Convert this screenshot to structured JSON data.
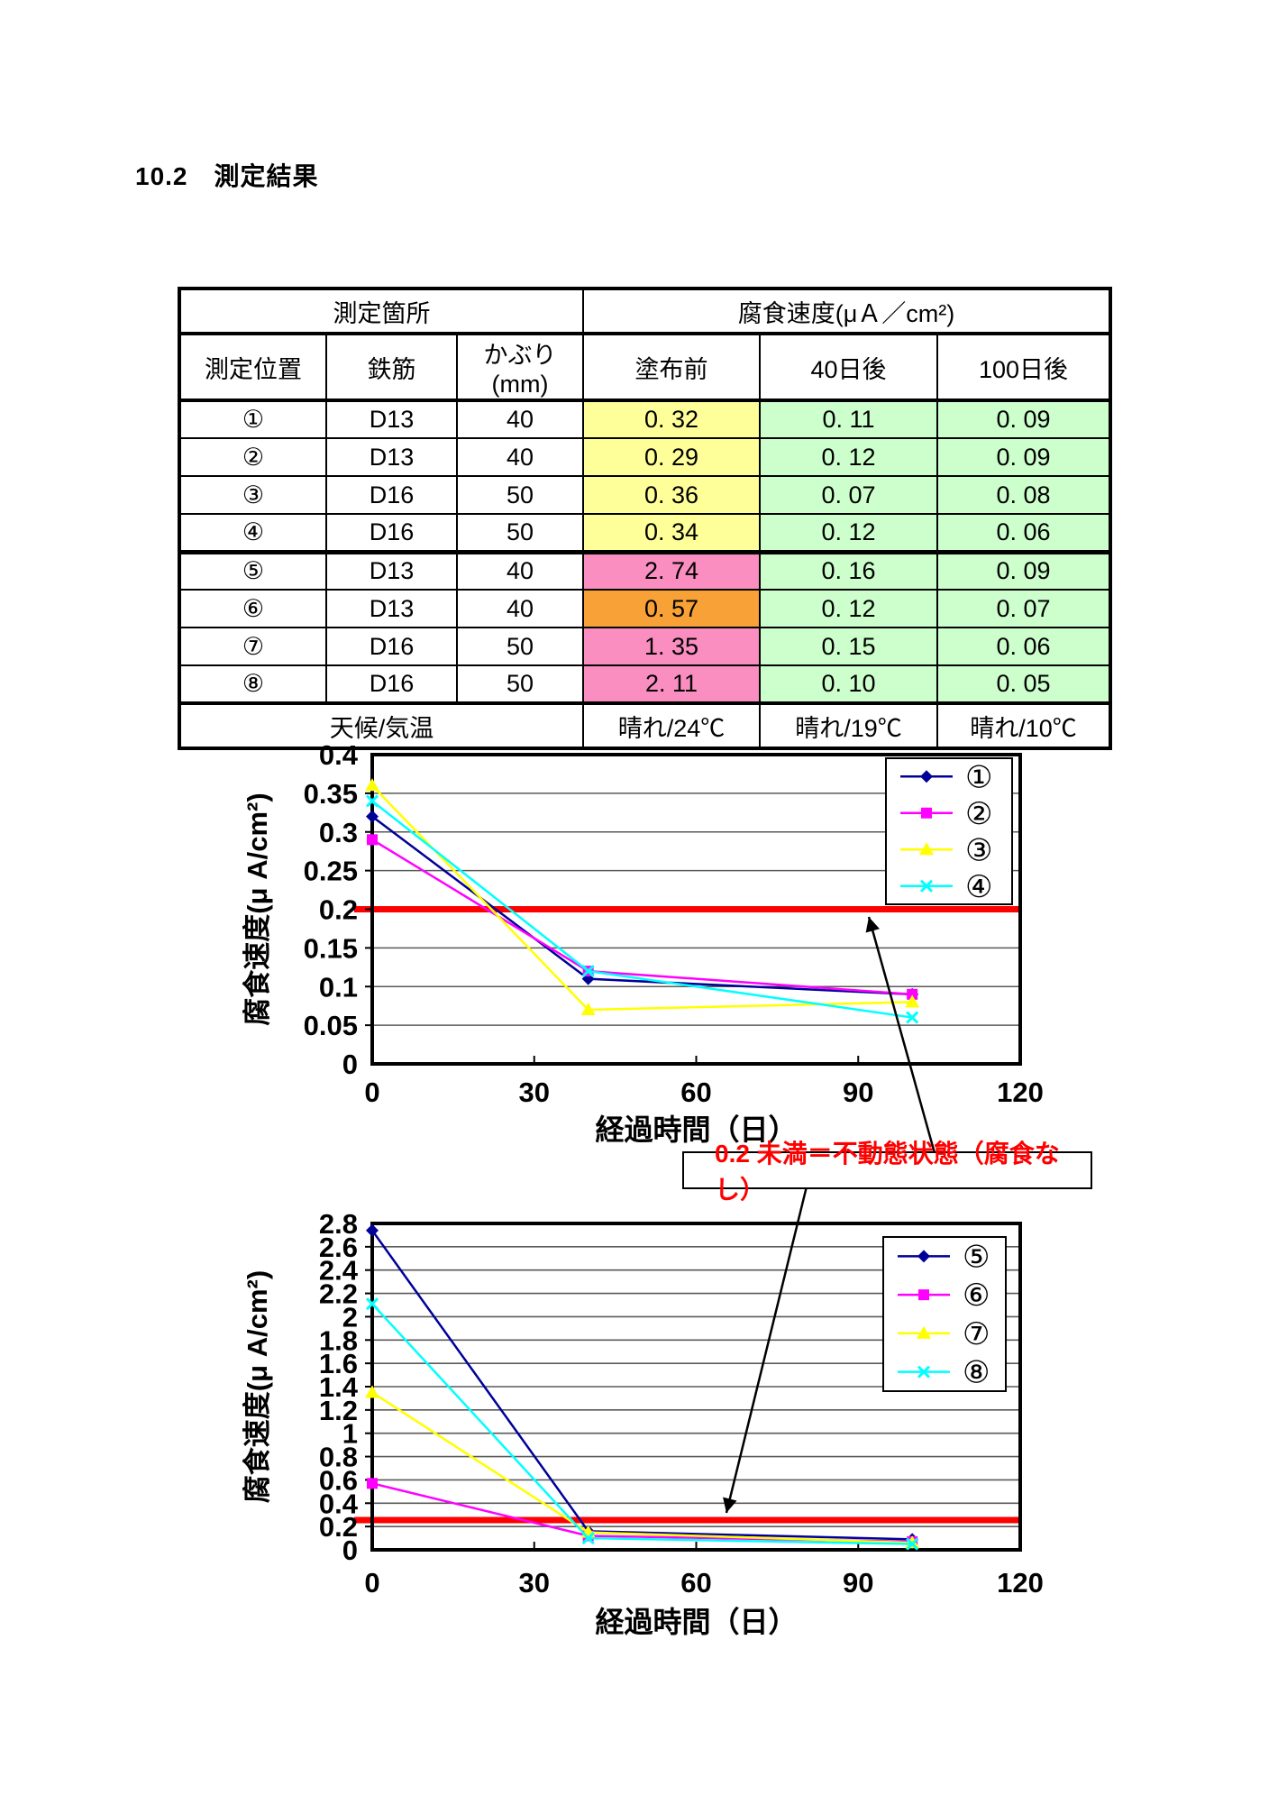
{
  "page": {
    "title": "10.2　測定結果"
  },
  "table": {
    "group_headers": {
      "left": "測定箇所",
      "right": "腐食速度(μＡ／cm²)"
    },
    "columns": [
      "測定位置",
      "鉄筋",
      "かぶり(mm)",
      "塗布前",
      "40日後",
      "100日後"
    ],
    "rows": [
      {
        "pos": "①",
        "bar": "D13",
        "cover": "40",
        "before": "0. 32",
        "after40": "0. 11",
        "after100": "0. 09",
        "before_color": "#FFFF99"
      },
      {
        "pos": "②",
        "bar": "D13",
        "cover": "40",
        "before": "0. 29",
        "after40": "0. 12",
        "after100": "0. 09",
        "before_color": "#FFFF99"
      },
      {
        "pos": "③",
        "bar": "D16",
        "cover": "50",
        "before": "0. 36",
        "after40": "0. 07",
        "after100": "0. 08",
        "before_color": "#FFFF99"
      },
      {
        "pos": "④",
        "bar": "D16",
        "cover": "50",
        "before": "0. 34",
        "after40": "0. 12",
        "after100": "0. 06",
        "before_color": "#FFFF99"
      },
      {
        "pos": "⑤",
        "bar": "D13",
        "cover": "40",
        "before": "2. 74",
        "after40": "0. 16",
        "after100": "0. 09",
        "before_color": "#FA8EC0"
      },
      {
        "pos": "⑥",
        "bar": "D13",
        "cover": "40",
        "before": "0. 57",
        "after40": "0. 12",
        "after100": "0. 07",
        "before_color": "#F7A136"
      },
      {
        "pos": "⑦",
        "bar": "D16",
        "cover": "50",
        "before": "1. 35",
        "after40": "0. 15",
        "after100": "0. 06",
        "before_color": "#FA8EC0"
      },
      {
        "pos": "⑧",
        "bar": "D16",
        "cover": "50",
        "before": "2. 11",
        "after40": "0. 10",
        "after100": "0. 05",
        "before_color": "#FA8EC0"
      }
    ],
    "result_color": "#CCFFCC",
    "footer": {
      "label": "天候/気温",
      "values": [
        "晴れ/24℃",
        "晴れ/19℃",
        "晴れ/10℃"
      ]
    }
  },
  "annotation": {
    "text": "0.2 未満＝不動態状態（腐食なし）",
    "text_color": "#FF0000"
  },
  "chart_data": [
    {
      "type": "line",
      "title": "",
      "x": [
        0,
        40,
        100
      ],
      "series": [
        {
          "name": "①",
          "color": "#000099",
          "marker": "diamond",
          "values": [
            0.32,
            0.11,
            0.09
          ]
        },
        {
          "name": "②",
          "color": "#FF00FF",
          "marker": "square",
          "values": [
            0.29,
            0.12,
            0.09
          ]
        },
        {
          "name": "③",
          "color": "#FFFF00",
          "marker": "triangle",
          "values": [
            0.36,
            0.07,
            0.08
          ]
        },
        {
          "name": "④",
          "color": "#00FFFF",
          "marker": "x",
          "values": [
            0.34,
            0.12,
            0.06
          ]
        }
      ],
      "xlabel": "経過時間（日）",
      "ylabel": "腐食速度(μ A/cm²)",
      "xlim": [
        0,
        120
      ],
      "xticks": [
        0,
        30,
        60,
        90,
        120
      ],
      "ylim": [
        0,
        0.4
      ],
      "ytick_step": 0.05,
      "threshold": 0.2,
      "threshold_color": "#FF0000",
      "grid": "horizontal-only",
      "legend_position": "inside-top-right"
    },
    {
      "type": "line",
      "title": "",
      "x": [
        0,
        40,
        100
      ],
      "series": [
        {
          "name": "⑤",
          "color": "#000099",
          "marker": "diamond",
          "values": [
            2.74,
            0.16,
            0.09
          ]
        },
        {
          "name": "⑥",
          "color": "#FF00FF",
          "marker": "square",
          "values": [
            0.57,
            0.12,
            0.07
          ]
        },
        {
          "name": "⑦",
          "color": "#FFFF00",
          "marker": "triangle",
          "values": [
            1.35,
            0.15,
            0.06
          ]
        },
        {
          "name": "⑧",
          "color": "#00FFFF",
          "marker": "x",
          "values": [
            2.11,
            0.1,
            0.05
          ]
        }
      ],
      "xlabel": "経過時間（日）",
      "ylabel": "腐食速度(μ A/cm²)",
      "xlim": [
        0,
        120
      ],
      "xticks": [
        0,
        30,
        60,
        90,
        120
      ],
      "ylim": [
        0,
        2.8
      ],
      "ytick_step": 0.2,
      "threshold": 0.2,
      "threshold_color": "#FF0000",
      "grid": "horizontal-only",
      "legend_position": "inside-top-right"
    }
  ]
}
